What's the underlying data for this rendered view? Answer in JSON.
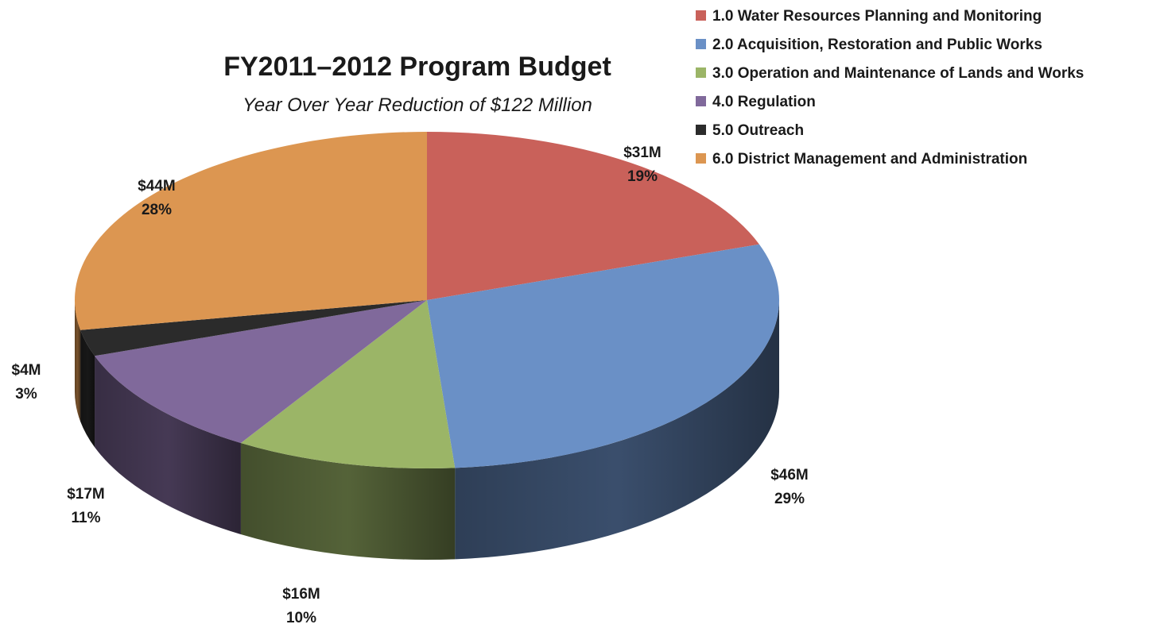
{
  "chart_data": {
    "type": "pie",
    "title": "FY2011–2012 Program Budget",
    "subtitle": "Year Over Year Reduction of $122 Million",
    "legend_position": "top-right",
    "series": [
      {
        "name": "",
        "slices": [
          {
            "label": "1.0 Water Resources Planning and Monitoring",
            "value": 31,
            "value_label": "$31M",
            "percent_label": "19%",
            "color": "#c9615a"
          },
          {
            "label": "2.0 Acquisition, Restoration and Public Works",
            "value": 46,
            "value_label": "$46M",
            "percent_label": "29%",
            "color": "#6a90c6"
          },
          {
            "label": "3.0 Operation and Maintenance of Lands and Works",
            "value": 16,
            "value_label": "$16M",
            "percent_label": "10%",
            "color": "#9bb567"
          },
          {
            "label": "4.0 Regulation",
            "value": 17,
            "value_label": "$17M",
            "percent_label": "11%",
            "color": "#80699b"
          },
          {
            "label": "5.0 Outreach",
            "value": 4,
            "value_label": "$4M",
            "percent_label": "3%",
            "color": "#2b2b2b"
          },
          {
            "label": "6.0 District Management and Administration",
            "value": 44,
            "value_label": "$44M",
            "percent_label": "28%",
            "color": "#dc9651"
          }
        ]
      }
    ]
  }
}
